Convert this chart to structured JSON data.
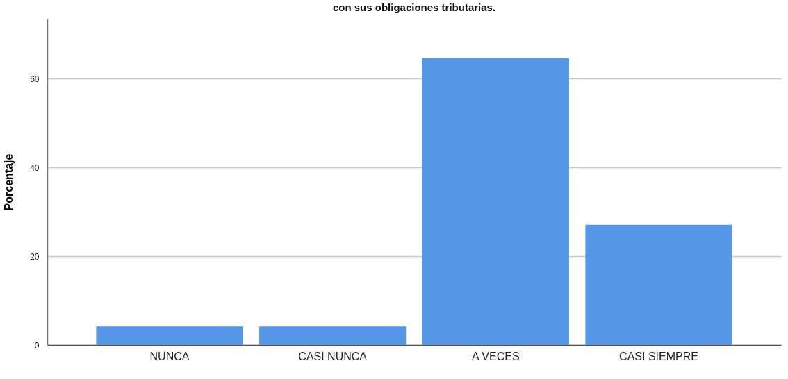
{
  "chart_data": {
    "type": "bar",
    "title": "con sus obligaciones tributarias.",
    "ylabel": "Porcentaje",
    "categories": [
      "NUNCA",
      "CASI NUNCA",
      "A VECES",
      "CASI SIEMPRE"
    ],
    "values": [
      4.2,
      4.2,
      64.6,
      27.1
    ],
    "color": "#5596e6",
    "ylim": [
      0,
      73.5
    ],
    "yticks": [
      0,
      20,
      40,
      60
    ],
    "grid": "y"
  }
}
